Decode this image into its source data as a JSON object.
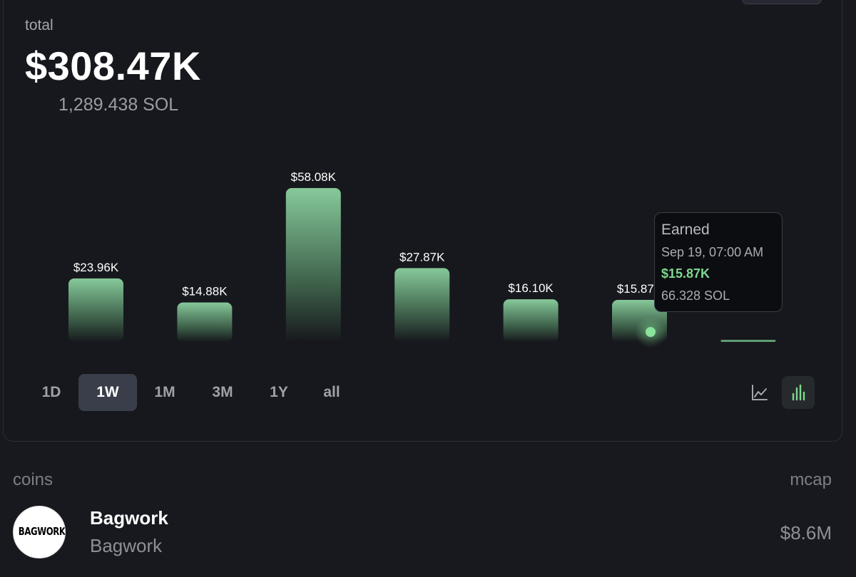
{
  "summary": {
    "label": "total",
    "value": "$308.47K",
    "sol": "1,289.438 SOL"
  },
  "chart_data": {
    "type": "bar",
    "categories": [
      "",
      "",
      "",
      "",
      "",
      "",
      ""
    ],
    "values": [
      23.96,
      14.88,
      58.08,
      27.87,
      16.1,
      15.87,
      0.3
    ],
    "labels": [
      "$23.96K",
      "$14.88K",
      "$58.08K",
      "$27.87K",
      "$16.10K",
      "$15.87K",
      ""
    ],
    "unit": "$K",
    "ylim": [
      0,
      58.08
    ],
    "grid": false,
    "bar_color": "#7fc497"
  },
  "tooltip": {
    "title": "Earned",
    "date": "Sep 19, 07:00 AM",
    "value": "$15.87K",
    "sol": "66.328 SOL"
  },
  "ranges": [
    {
      "label": "1D",
      "active": false
    },
    {
      "label": "1W",
      "active": true
    },
    {
      "label": "1M",
      "active": false
    },
    {
      "label": "3M",
      "active": false
    },
    {
      "label": "1Y",
      "active": false
    },
    {
      "label": "all",
      "active": false
    }
  ],
  "view_toggles": [
    {
      "icon": "line-chart-icon",
      "active": false
    },
    {
      "icon": "bar-chart-icon",
      "active": true
    }
  ],
  "coins": {
    "header": "coins",
    "mcap_header": "mcap",
    "rows": [
      {
        "name": "Bagwork",
        "symbol": "Bagwork",
        "mcap": "$8.6M",
        "logo_text": "BAGWORK"
      }
    ]
  },
  "colors": {
    "accent": "#7ed88f",
    "background": "#18191e"
  }
}
